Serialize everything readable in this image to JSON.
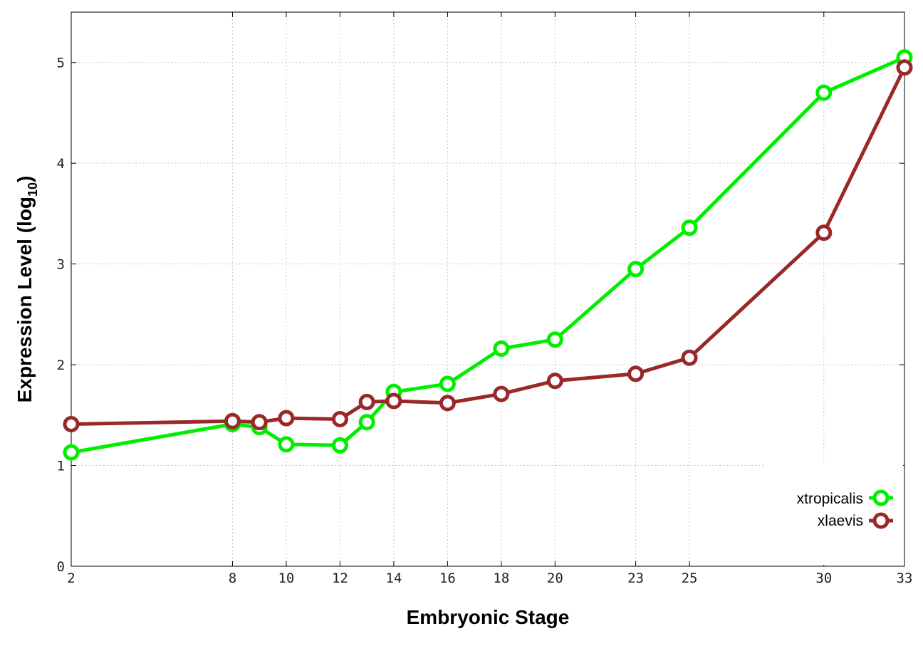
{
  "chart_data": {
    "type": "line",
    "xlabel": "Embryonic Stage",
    "ylabel": "Expression Level (log",
    "ylabel_sub": "10",
    "ylabel_close": ")",
    "xlim": [
      2,
      33
    ],
    "ylim": [
      0,
      5.5
    ],
    "xticks": [
      2,
      8,
      10,
      12,
      14,
      16,
      18,
      20,
      23,
      25,
      30,
      33
    ],
    "yticks": [
      0,
      1,
      2,
      3,
      4,
      5
    ],
    "grid": true,
    "legend_position": "bottom-right",
    "series": [
      {
        "name": "xtropicalis",
        "color": "#00ee00",
        "x": [
          2,
          8,
          9,
          10,
          12,
          13,
          14,
          16,
          18,
          20,
          23,
          25,
          30,
          33
        ],
        "y": [
          1.13,
          1.41,
          1.38,
          1.21,
          1.2,
          1.43,
          1.73,
          1.81,
          2.16,
          2.25,
          2.95,
          3.36,
          4.7,
          5.05
        ]
      },
      {
        "name": "xlaevis",
        "color": "#992828",
        "x": [
          2,
          8,
          9,
          10,
          12,
          13,
          14,
          16,
          18,
          20,
          23,
          25,
          30,
          33
        ],
        "y": [
          1.41,
          1.44,
          1.43,
          1.47,
          1.46,
          1.63,
          1.64,
          1.62,
          1.71,
          1.84,
          1.91,
          2.07,
          3.31,
          4.95
        ]
      }
    ]
  }
}
